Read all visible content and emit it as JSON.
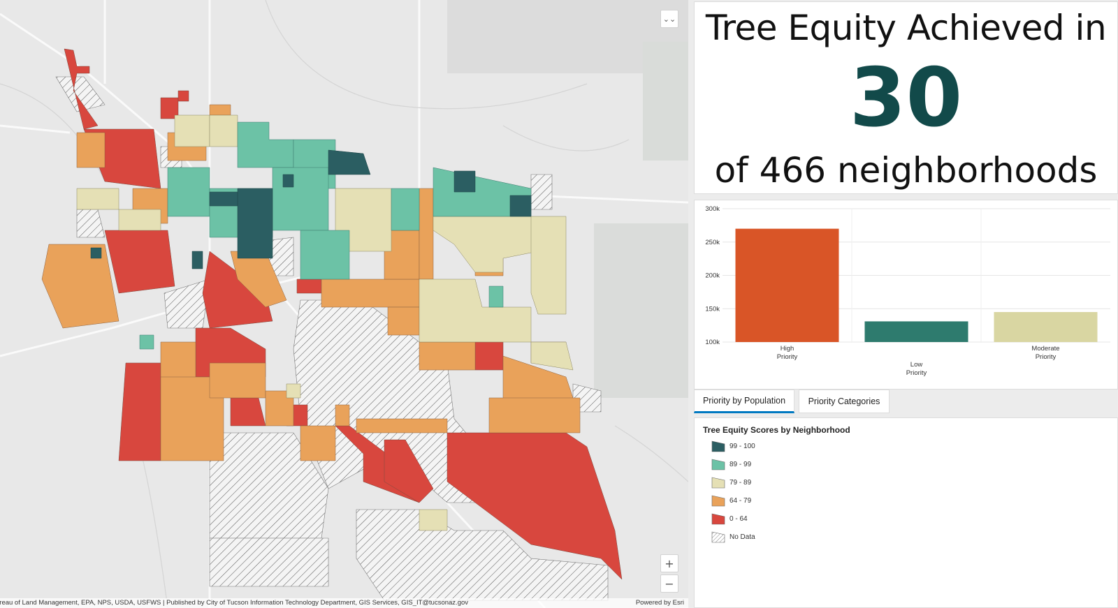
{
  "indicator": {
    "top_text": "Tree Equity Achieved in",
    "value": "30",
    "bottom_text": "of 466 neighborhoods"
  },
  "chart_data": {
    "type": "bar",
    "categories": [
      "High\nPriority",
      "Low\nPriority",
      "Moderate\nPriority"
    ],
    "values": [
      270000,
      131000,
      145000
    ],
    "colors": [
      "#d95527",
      "#2e7b6e",
      "#d9d6a2"
    ],
    "ylim": [
      100000,
      300000
    ],
    "yticks": [
      "100k",
      "150k",
      "200k",
      "250k",
      "300k"
    ],
    "title": "",
    "xlabel": "",
    "ylabel": ""
  },
  "tabs": [
    {
      "label": "Priority by Population",
      "active": true
    },
    {
      "label": "Priority Categories",
      "active": false
    }
  ],
  "legend": {
    "title": "Tree Equity Scores by Neighborhood",
    "items": [
      {
        "label": "99 - 100",
        "color": "#2b5e62"
      },
      {
        "label": "89 - 99",
        "color": "#6cc2a6"
      },
      {
        "label": "79 - 89",
        "color": "#e5e0b5"
      },
      {
        "label": "64 - 79",
        "color": "#e9a25a"
      },
      {
        "label": "0 - 64",
        "color": "#d8473e"
      },
      {
        "label": "No Data",
        "color": "hatch"
      }
    ]
  },
  "map": {
    "attribution": "ureau of Land Management, EPA, NPS, USDA, USFWS | Published by City of Tucson Information Technology Department, GIS Services, GIS_IT@tucsonaz.gov",
    "powered_by": "Powered by Esri",
    "zoom_in": "+",
    "zoom_out": "−",
    "collapse_icon": "⌄⌄"
  }
}
